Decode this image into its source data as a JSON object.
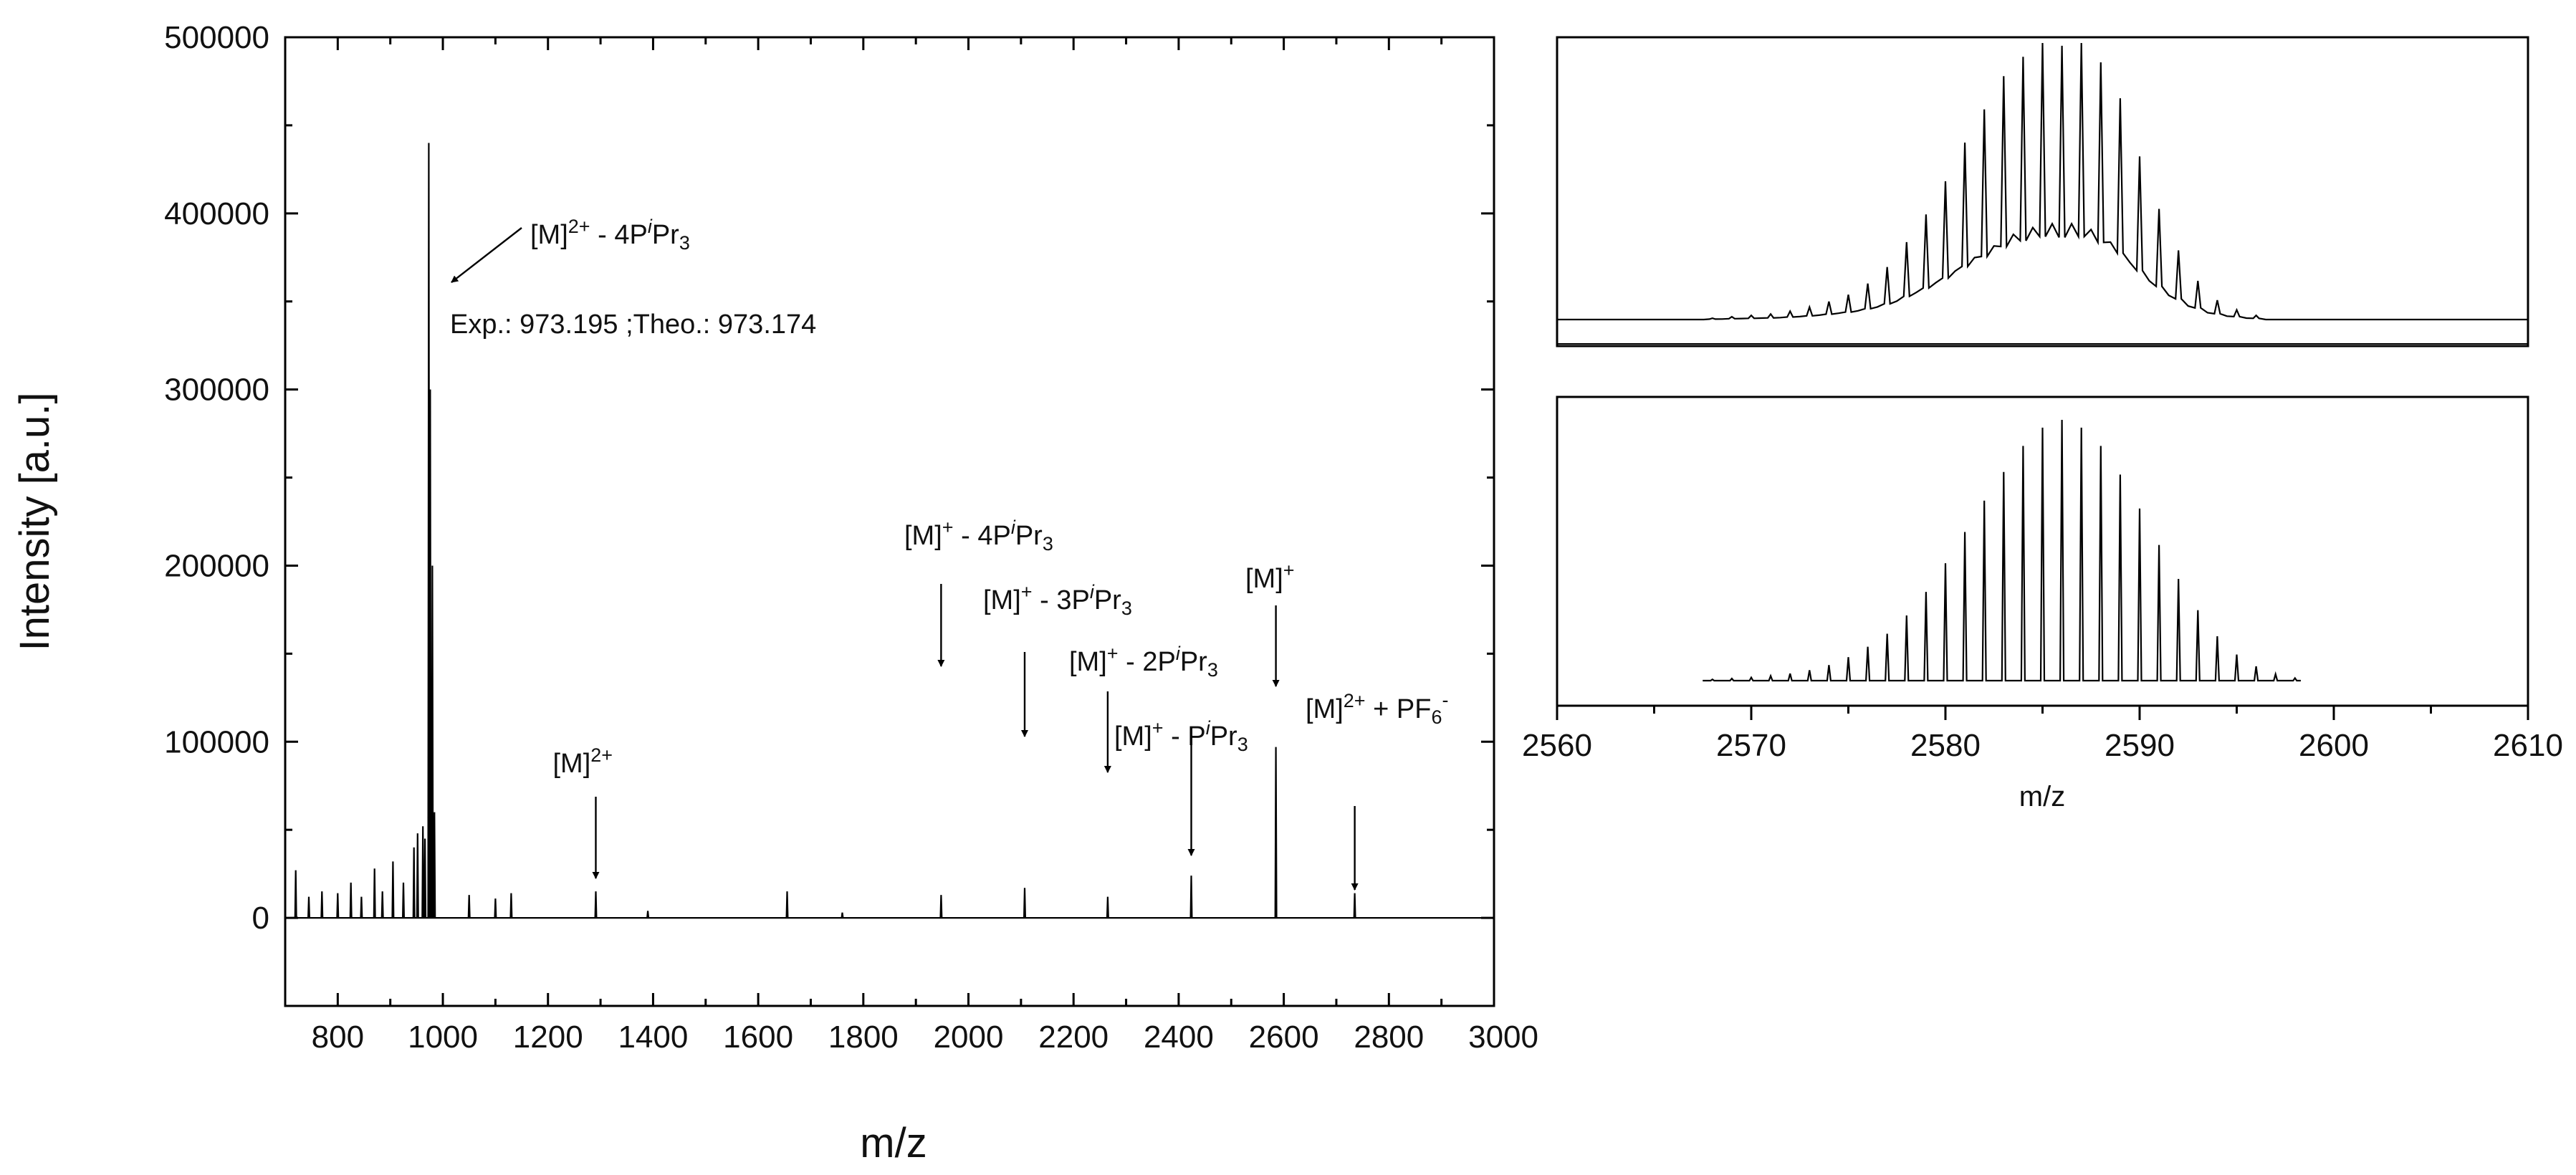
{
  "colors": {
    "line": "#000000",
    "background": "#ffffff"
  },
  "chart_data": [
    {
      "type": "line",
      "title": "",
      "xlabel": "m/z",
      "ylabel": "Intensity [a.u.]",
      "xlim": [
        700,
        3000
      ],
      "ylim": [
        -50000,
        500000
      ],
      "x_ticks": [
        800,
        1000,
        1200,
        1400,
        1600,
        1800,
        2000,
        2200,
        2400,
        2600,
        2800,
        3000
      ],
      "y_ticks": [
        0,
        100000,
        200000,
        300000,
        400000,
        500000
      ],
      "grid": false,
      "peaks": [
        {
          "x": 720,
          "y": 27000
        },
        {
          "x": 745,
          "y": 12000
        },
        {
          "x": 770,
          "y": 15000
        },
        {
          "x": 800,
          "y": 14000
        },
        {
          "x": 825,
          "y": 20000
        },
        {
          "x": 845,
          "y": 12000
        },
        {
          "x": 870,
          "y": 28000
        },
        {
          "x": 885,
          "y": 15000
        },
        {
          "x": 905,
          "y": 32000
        },
        {
          "x": 925,
          "y": 20000
        },
        {
          "x": 945,
          "y": 40000
        },
        {
          "x": 952,
          "y": 48000
        },
        {
          "x": 962,
          "y": 52000
        },
        {
          "x": 966,
          "y": 45000
        },
        {
          "x": 973.195,
          "y": 440000
        },
        {
          "x": 976,
          "y": 300000
        },
        {
          "x": 980,
          "y": 200000
        },
        {
          "x": 984,
          "y": 60000
        },
        {
          "x": 1050,
          "y": 13000
        },
        {
          "x": 1100,
          "y": 11000
        },
        {
          "x": 1130,
          "y": 14000
        },
        {
          "x": 1291,
          "y": 15000
        },
        {
          "x": 1390,
          "y": 4000
        },
        {
          "x": 1655,
          "y": 15000
        },
        {
          "x": 1760,
          "y": 3000
        },
        {
          "x": 1948,
          "y": 13000
        },
        {
          "x": 2107,
          "y": 17000
        },
        {
          "x": 2265,
          "y": 12000
        },
        {
          "x": 2424,
          "y": 24000
        },
        {
          "x": 2585,
          "y": 97000
        },
        {
          "x": 2735,
          "y": 14000
        }
      ],
      "annotations": [
        {
          "parts": [
            "[M]",
            "2+",
            " - 4P",
            "i",
            "Pr",
            "3"
          ],
          "x": 975,
          "y": 440000
        },
        {
          "text": "Exp.: 973.195 ;Theo.: 973.174"
        },
        {
          "parts": [
            "[M]",
            "2+"
          ],
          "x": 1291
        },
        {
          "parts": [
            "[M]",
            "+",
            " - 4P",
            "i",
            "Pr",
            "3"
          ],
          "x": 1948
        },
        {
          "parts": [
            "[M]",
            "+",
            " - 3P",
            "i",
            "Pr",
            "3"
          ],
          "x": 2107
        },
        {
          "parts": [
            "[M]",
            "+",
            " - 2P",
            "i",
            "Pr",
            "3"
          ],
          "x": 2265
        },
        {
          "parts": [
            "[M]",
            "+",
            " - P",
            "i",
            "Pr",
            "3"
          ],
          "x": 2424
        },
        {
          "parts": [
            "[M]",
            "+"
          ],
          "x": 2585
        },
        {
          "parts": [
            "[M]",
            "2+",
            " + PF",
            "6",
            "-"
          ],
          "x": 2735
        }
      ]
    },
    {
      "type": "line",
      "title": "",
      "xlabel": "m/z",
      "xlim": [
        2560,
        2610
      ],
      "x_ticks": [
        2560,
        2570,
        2580,
        2590,
        2600,
        2610
      ],
      "grid": false,
      "panels": [
        {
          "name": "",
          "baseline_start": 2560,
          "baseline_end": 2610,
          "peaks": [
            {
              "x": 2568,
              "y": 0.005
            },
            {
              "x": 2569,
              "y": 0.01
            },
            {
              "x": 2570,
              "y": 0.015
            },
            {
              "x": 2571,
              "y": 0.02
            },
            {
              "x": 2572,
              "y": 0.03
            },
            {
              "x": 2573,
              "y": 0.045
            },
            {
              "x": 2574,
              "y": 0.065
            },
            {
              "x": 2575,
              "y": 0.09
            },
            {
              "x": 2576,
              "y": 0.13
            },
            {
              "x": 2577,
              "y": 0.19
            },
            {
              "x": 2578,
              "y": 0.28
            },
            {
              "x": 2579,
              "y": 0.38
            },
            {
              "x": 2580,
              "y": 0.5
            },
            {
              "x": 2581,
              "y": 0.64
            },
            {
              "x": 2582,
              "y": 0.76
            },
            {
              "x": 2583,
              "y": 0.88
            },
            {
              "x": 2584,
              "y": 0.95
            },
            {
              "x": 2585,
              "y": 1.0
            },
            {
              "x": 2586,
              "y": 0.99
            },
            {
              "x": 2587,
              "y": 1.0
            },
            {
              "x": 2588,
              "y": 0.93
            },
            {
              "x": 2589,
              "y": 0.8
            },
            {
              "x": 2590,
              "y": 0.59
            },
            {
              "x": 2591,
              "y": 0.4
            },
            {
              "x": 2592,
              "y": 0.25
            },
            {
              "x": 2593,
              "y": 0.14
            },
            {
              "x": 2594,
              "y": 0.07
            },
            {
              "x": 2595,
              "y": 0.035
            },
            {
              "x": 2596,
              "y": 0.015
            }
          ]
        },
        {
          "name": "",
          "baseline_start": 2567.5,
          "baseline_end": 2598.3,
          "peaks": [
            {
              "x": 2568,
              "y": 0.005
            },
            {
              "x": 2569,
              "y": 0.008
            },
            {
              "x": 2570,
              "y": 0.012
            },
            {
              "x": 2571,
              "y": 0.018
            },
            {
              "x": 2572,
              "y": 0.027
            },
            {
              "x": 2573,
              "y": 0.04
            },
            {
              "x": 2574,
              "y": 0.06
            },
            {
              "x": 2575,
              "y": 0.09
            },
            {
              "x": 2576,
              "y": 0.13
            },
            {
              "x": 2577,
              "y": 0.18
            },
            {
              "x": 2578,
              "y": 0.25
            },
            {
              "x": 2579,
              "y": 0.34
            },
            {
              "x": 2580,
              "y": 0.45
            },
            {
              "x": 2581,
              "y": 0.57
            },
            {
              "x": 2582,
              "y": 0.69
            },
            {
              "x": 2583,
              "y": 0.8
            },
            {
              "x": 2584,
              "y": 0.9
            },
            {
              "x": 2585,
              "y": 0.97
            },
            {
              "x": 2586,
              "y": 1.0
            },
            {
              "x": 2587,
              "y": 0.97
            },
            {
              "x": 2588,
              "y": 0.9
            },
            {
              "x": 2589,
              "y": 0.79
            },
            {
              "x": 2590,
              "y": 0.66
            },
            {
              "x": 2591,
              "y": 0.52
            },
            {
              "x": 2592,
              "y": 0.39
            },
            {
              "x": 2593,
              "y": 0.27
            },
            {
              "x": 2594,
              "y": 0.17
            },
            {
              "x": 2595,
              "y": 0.1
            },
            {
              "x": 2596,
              "y": 0.055
            },
            {
              "x": 2597,
              "y": 0.025
            },
            {
              "x": 2598,
              "y": 0.01
            }
          ]
        }
      ]
    }
  ]
}
